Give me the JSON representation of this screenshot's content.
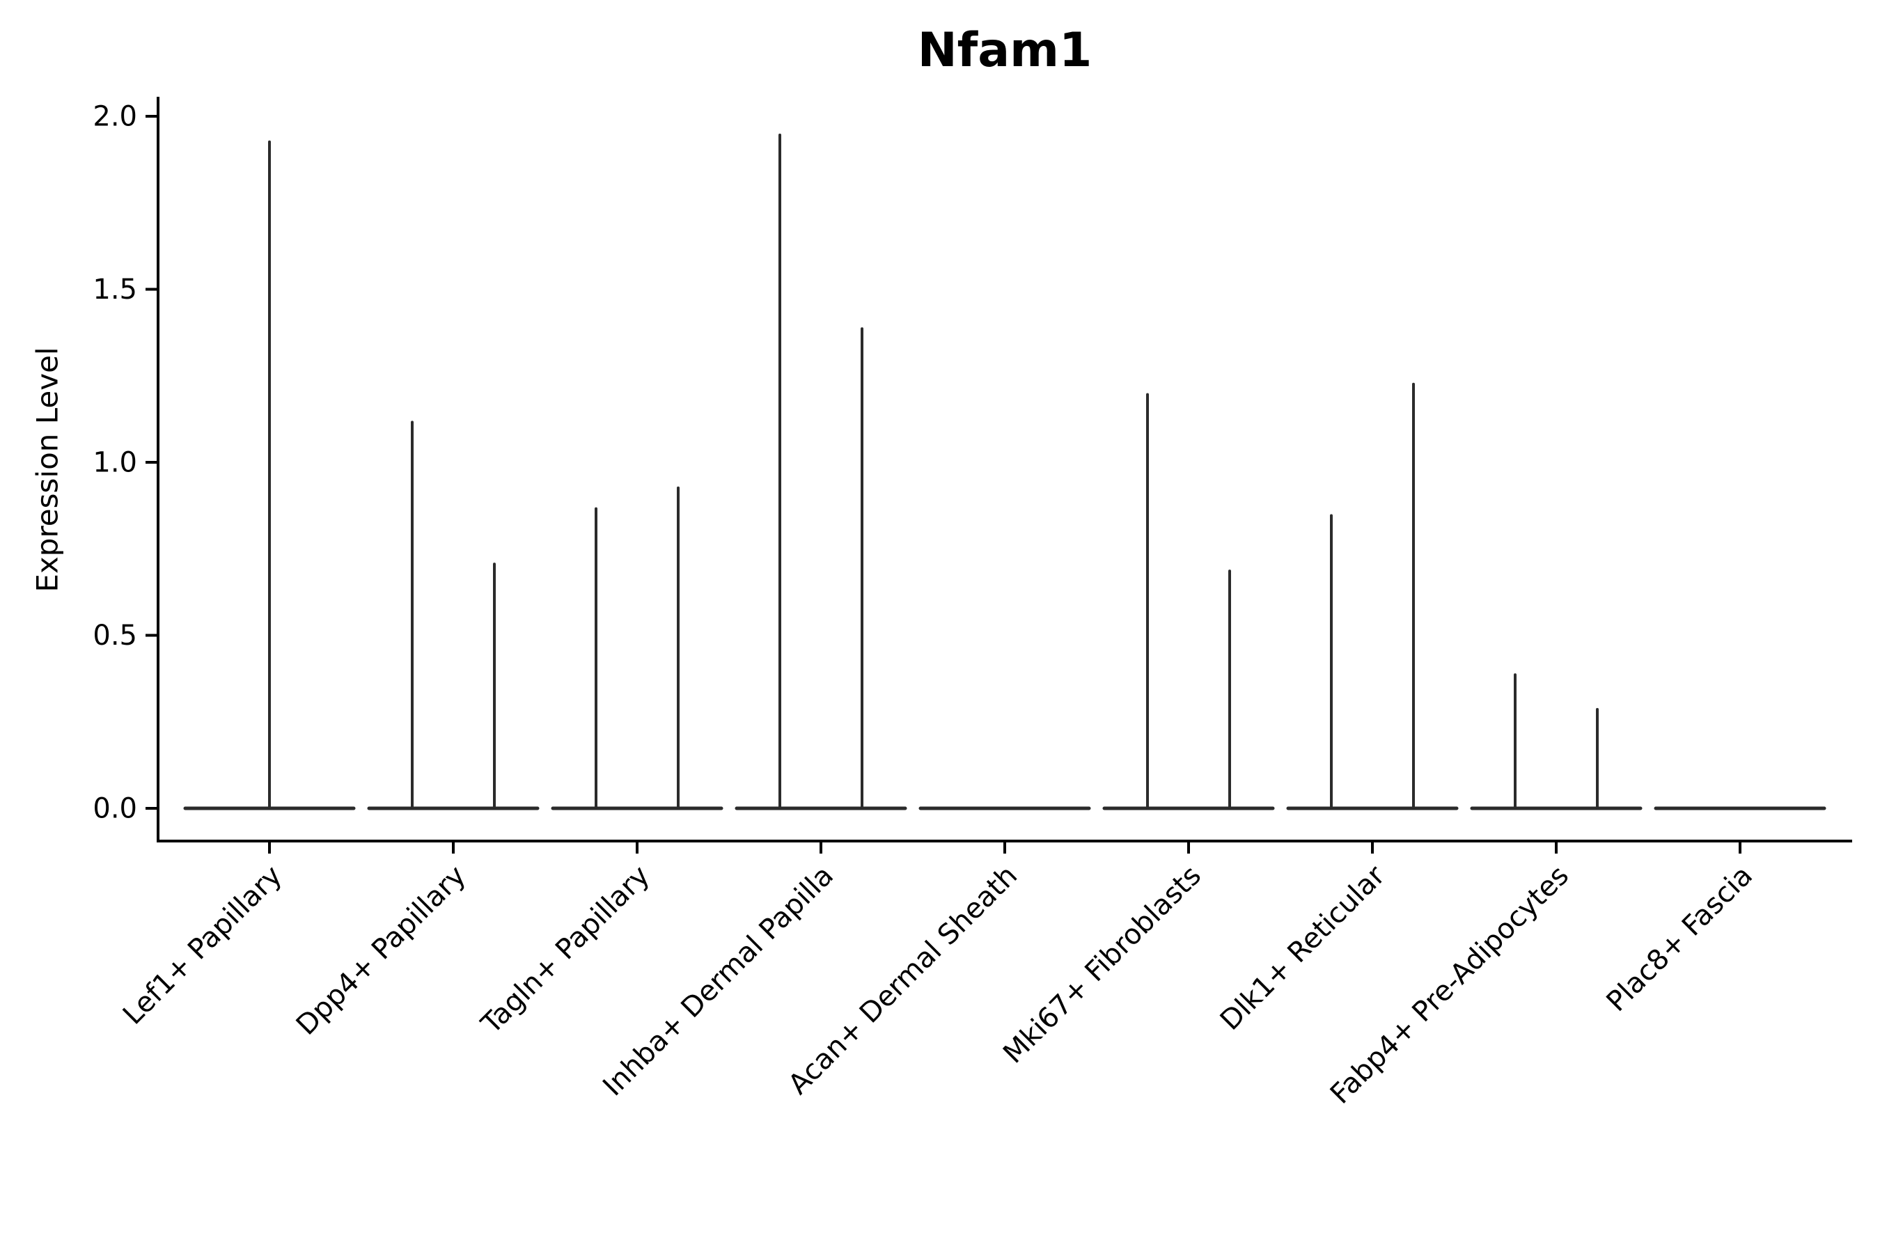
{
  "figure": {
    "background": "#ffffff"
  },
  "chart_data": {
    "type": "violin",
    "title": "Nfam1",
    "ylabel": "Expression Level",
    "xlabel": "",
    "ytick_labels": [
      "0.0",
      "0.5",
      "1.0",
      "1.5",
      "2.0"
    ],
    "ytick_values": [
      0.0,
      0.5,
      1.0,
      1.5,
      2.0
    ],
    "ylim": [
      -0.095,
      2.056
    ],
    "grid": false,
    "legend": "none",
    "xtick_rotation_deg": 45,
    "colors": {
      "violin_stroke": "#2b2b2b",
      "axis": "#000000",
      "text": "#000000",
      "background": "#ffffff"
    },
    "categories": [
      "Lef1+ Papillary",
      "Dpp4+ Papillary",
      "Tagln+ Papillary",
      "Inhba+ Dermal Papilla",
      "Acan+ Dermal Sheath",
      "Mki67+ Fibroblasts",
      "Dlk1+ Reticular",
      "Fabp4+ Pre-Adipocytes",
      "Plac8+ Fascia"
    ],
    "violins": [
      {
        "category": "Lef1+ Papillary",
        "spikes": [
          {
            "position": "center",
            "max_expression": 1.93
          }
        ]
      },
      {
        "category": "Dpp4+ Papillary",
        "spikes": [
          {
            "position": "left",
            "max_expression": 1.12
          },
          {
            "position": "right",
            "max_expression": 0.71
          }
        ]
      },
      {
        "category": "Tagln+ Papillary",
        "spikes": [
          {
            "position": "left",
            "max_expression": 0.87
          },
          {
            "position": "right",
            "max_expression": 0.93
          }
        ]
      },
      {
        "category": "Inhba+ Dermal Papilla",
        "spikes": [
          {
            "position": "left",
            "max_expression": 1.95
          },
          {
            "position": "right",
            "max_expression": 1.39
          }
        ]
      },
      {
        "category": "Acan+ Dermal Sheath",
        "spikes": []
      },
      {
        "category": "Mki67+ Fibroblasts",
        "spikes": [
          {
            "position": "left",
            "max_expression": 1.2
          },
          {
            "position": "right",
            "max_expression": 0.69
          }
        ]
      },
      {
        "category": "Dlk1+ Reticular",
        "spikes": [
          {
            "position": "left",
            "max_expression": 0.85
          },
          {
            "position": "right",
            "max_expression": 1.23
          }
        ]
      },
      {
        "category": "Fabp4+ Pre-Adipocytes",
        "spikes": [
          {
            "position": "left",
            "max_expression": 0.39
          },
          {
            "position": "right",
            "max_expression": 0.29
          }
        ]
      },
      {
        "category": "Plac8+ Fascia",
        "spikes": []
      }
    ]
  }
}
